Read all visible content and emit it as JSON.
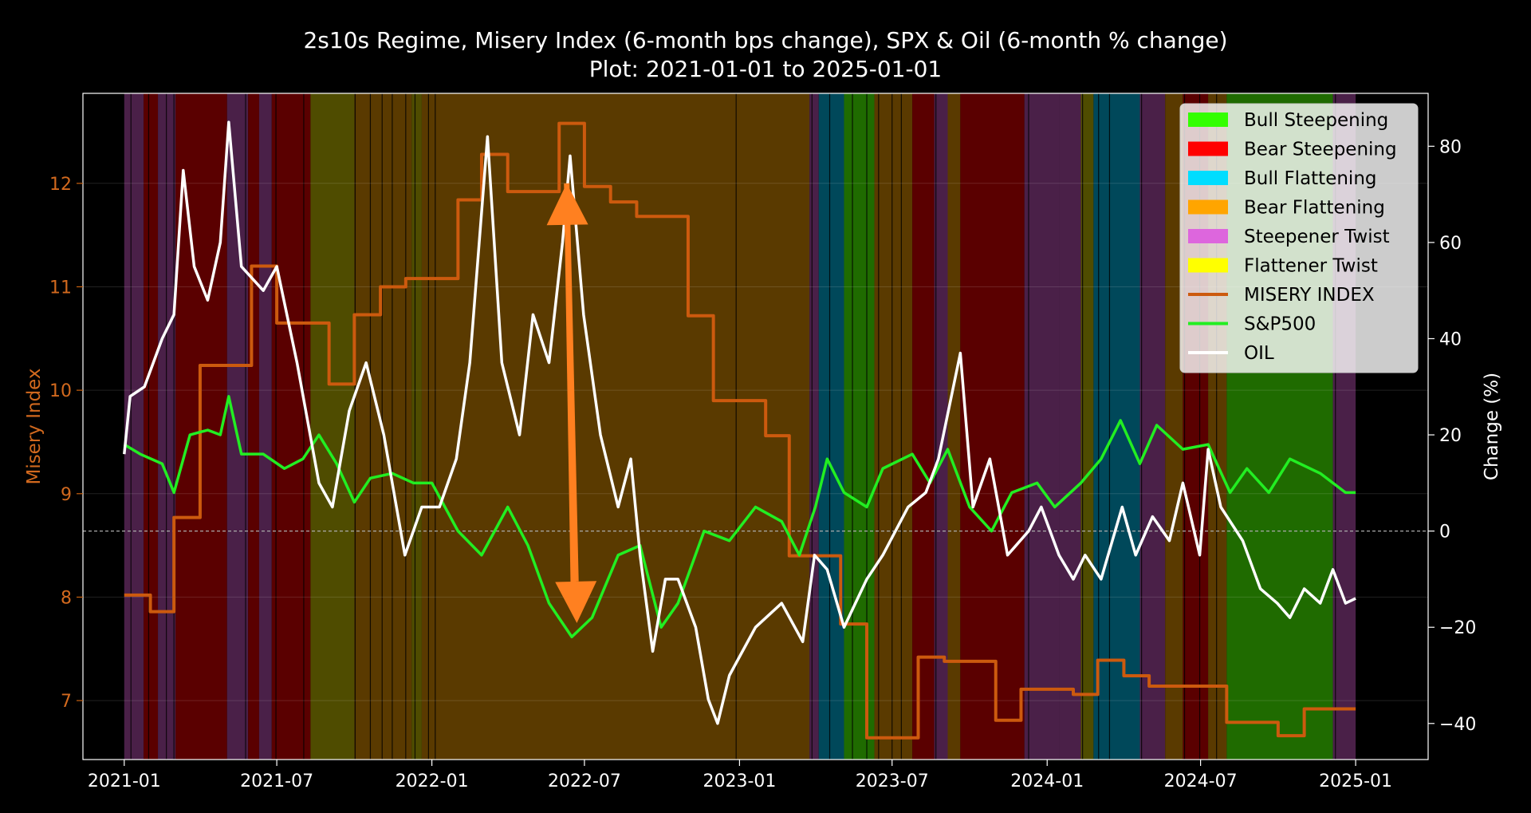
{
  "chart_data": {
    "type": "line",
    "title": "2s10s Regime, Misery Index (6-month bps change), SPX & Oil (6-month % change)",
    "subtitle": "Plot: 2021-01-01 to 2025-01-01",
    "xlabel": "",
    "ylabel_left": "Misery Index",
    "ylabel_right": "Change (%)",
    "x_ticks": [
      "2021-01",
      "2021-07",
      "2022-01",
      "2022-07",
      "2023-01",
      "2023-07",
      "2024-01",
      "2024-07",
      "2025-01"
    ],
    "y_left_ticks": [
      "7",
      "8",
      "9",
      "10",
      "11",
      "12"
    ],
    "y_right_ticks": [
      "−40",
      "−20",
      "0",
      "20",
      "40",
      "60",
      "80"
    ],
    "xlim": [
      "2020-11-13",
      "2025-03-28"
    ],
    "ylim_left": [
      6.43,
      12.87
    ],
    "ylim_right": [
      -47.5,
      91
    ],
    "grid": true,
    "zero_line": 0,
    "legend_position": "top-right",
    "legend": [
      {
        "label": "Bull Steepening",
        "kind": "patch",
        "color": "#33ff00"
      },
      {
        "label": "Bear Steepening",
        "kind": "patch",
        "color": "#ff0000"
      },
      {
        "label": "Bull Flattening",
        "kind": "patch",
        "color": "#00ddff"
      },
      {
        "label": "Bear Flattening",
        "kind": "patch",
        "color": "#ffa500"
      },
      {
        "label": "Steepener Twist",
        "kind": "patch",
        "color": "#dd66dd"
      },
      {
        "label": "Flattener Twist",
        "kind": "patch",
        "color": "#ffff00"
      },
      {
        "label": "MISERY INDEX",
        "kind": "line",
        "color": "#cc5a0e"
      },
      {
        "label": "S&P500",
        "kind": "line",
        "color": "#22ee22"
      },
      {
        "label": "OIL",
        "kind": "line",
        "color": "#ffffff"
      }
    ],
    "regime_colors": {
      "bull_steep": "#1f6b00",
      "bear_steep": "#5a0000",
      "bull_flat": "#00485a",
      "bear_flat": "#5a3a00",
      "steep_twist": "#4a2048",
      "flat_twist": "#4f4c00"
    },
    "regimes": [
      [
        "2021-01-01",
        "2021-01-24",
        "steep_twist"
      ],
      [
        "2021-01-24",
        "2021-02-10",
        "bear_steep"
      ],
      [
        "2021-02-10",
        "2021-03-03",
        "steep_twist"
      ],
      [
        "2021-03-03",
        "2021-05-03",
        "bear_steep"
      ],
      [
        "2021-05-03",
        "2021-05-28",
        "steep_twist"
      ],
      [
        "2021-05-28",
        "2021-06-10",
        "bear_steep"
      ],
      [
        "2021-06-10",
        "2021-06-25",
        "steep_twist"
      ],
      [
        "2021-06-25",
        "2021-08-10",
        "bear_steep"
      ],
      [
        "2021-08-10",
        "2021-10-01",
        "flat_twist"
      ],
      [
        "2021-10-01",
        "2021-12-08",
        "bear_flat"
      ],
      [
        "2021-12-08",
        "2021-12-20",
        "flat_twist"
      ],
      [
        "2021-12-20",
        "2023-03-25",
        "bear_flat"
      ],
      [
        "2023-03-25",
        "2023-04-05",
        "steep_twist"
      ],
      [
        "2023-04-05",
        "2023-05-05",
        "bull_flat"
      ],
      [
        "2023-05-05",
        "2023-06-10",
        "bull_steep"
      ],
      [
        "2023-06-10",
        "2023-07-25",
        "bear_flat"
      ],
      [
        "2023-07-25",
        "2023-08-20",
        "bear_steep"
      ],
      [
        "2023-08-20",
        "2023-09-05",
        "steep_twist"
      ],
      [
        "2023-09-05",
        "2023-09-20",
        "bear_flat"
      ],
      [
        "2023-09-20",
        "2023-12-05",
        "bear_steep"
      ],
      [
        "2023-12-05",
        "2024-01-15",
        "steep_twist"
      ],
      [
        "2024-01-15",
        "2024-02-10",
        "steep_twist"
      ],
      [
        "2024-02-10",
        "2024-02-25",
        "flat_twist"
      ],
      [
        "2024-02-25",
        "2024-04-20",
        "bull_flat"
      ],
      [
        "2024-04-20",
        "2024-05-20",
        "steep_twist"
      ],
      [
        "2024-05-20",
        "2024-06-10",
        "bear_flat"
      ],
      [
        "2024-06-10",
        "2024-07-10",
        "bear_steep"
      ],
      [
        "2024-07-10",
        "2024-08-01",
        "bear_flat"
      ],
      [
        "2024-08-01",
        "2024-12-05",
        "bull_steep"
      ],
      [
        "2024-12-05",
        "2025-01-01",
        "steep_twist"
      ]
    ],
    "series": [
      {
        "name": "MISERY INDEX",
        "axis": "left",
        "color": "#cc5a0e",
        "step": true,
        "points": [
          [
            "2021-01-01",
            8.02
          ],
          [
            "2021-02-01",
            7.86
          ],
          [
            "2021-03-01",
            8.77
          ],
          [
            "2021-04-01",
            10.24
          ],
          [
            "2021-06-01",
            11.2
          ],
          [
            "2021-07-01",
            10.65
          ],
          [
            "2021-09-01",
            10.06
          ],
          [
            "2021-10-01",
            10.73
          ],
          [
            "2021-11-01",
            11.0
          ],
          [
            "2021-12-01",
            11.08
          ],
          [
            "2022-02-01",
            11.84
          ],
          [
            "2022-03-01",
            12.28
          ],
          [
            "2022-04-01",
            11.92
          ],
          [
            "2022-06-01",
            12.58
          ],
          [
            "2022-07-01",
            11.97
          ],
          [
            "2022-08-01",
            11.82
          ],
          [
            "2022-09-01",
            11.68
          ],
          [
            "2022-11-01",
            10.72
          ],
          [
            "2022-12-01",
            9.9
          ],
          [
            "2023-02-01",
            9.56
          ],
          [
            "2023-03-01",
            8.4
          ],
          [
            "2023-05-01",
            7.74
          ],
          [
            "2023-06-01",
            6.64
          ],
          [
            "2023-08-01",
            7.42
          ],
          [
            "2023-09-01",
            7.38
          ],
          [
            "2023-11-01",
            6.81
          ],
          [
            "2023-12-01",
            7.11
          ],
          [
            "2024-02-01",
            7.06
          ],
          [
            "2024-03-01",
            7.39
          ],
          [
            "2024-04-01",
            7.24
          ],
          [
            "2024-05-01",
            7.14
          ],
          [
            "2024-08-01",
            6.79
          ],
          [
            "2024-10-01",
            6.66
          ],
          [
            "2024-11-01",
            6.92
          ],
          [
            "2025-01-01",
            6.92
          ]
        ]
      },
      {
        "name": "S&P500",
        "axis": "right",
        "color": "#22ee22",
        "step": false,
        "points": [
          [
            "2021-01-01",
            18
          ],
          [
            "2021-01-20",
            16
          ],
          [
            "2021-02-15",
            14
          ],
          [
            "2021-03-01",
            8
          ],
          [
            "2021-03-20",
            20
          ],
          [
            "2021-04-10",
            21
          ],
          [
            "2021-04-25",
            20
          ],
          [
            "2021-05-05",
            28
          ],
          [
            "2021-05-20",
            16
          ],
          [
            "2021-06-15",
            16
          ],
          [
            "2021-07-10",
            13
          ],
          [
            "2021-08-01",
            15
          ],
          [
            "2021-08-20",
            20
          ],
          [
            "2021-09-10",
            14
          ],
          [
            "2021-10-01",
            6
          ],
          [
            "2021-10-20",
            11
          ],
          [
            "2021-11-15",
            12
          ],
          [
            "2021-12-10",
            10
          ],
          [
            "2022-01-01",
            10
          ],
          [
            "2022-02-01",
            0
          ],
          [
            "2022-03-01",
            -5
          ],
          [
            "2022-04-01",
            5
          ],
          [
            "2022-04-25",
            -3
          ],
          [
            "2022-05-20",
            -15
          ],
          [
            "2022-06-16",
            -22
          ],
          [
            "2022-07-10",
            -18
          ],
          [
            "2022-08-10",
            -5
          ],
          [
            "2022-09-05",
            -3
          ],
          [
            "2022-09-30",
            -20
          ],
          [
            "2022-10-20",
            -15
          ],
          [
            "2022-11-20",
            0
          ],
          [
            "2022-12-20",
            -2
          ],
          [
            "2023-01-20",
            5
          ],
          [
            "2023-02-20",
            2
          ],
          [
            "2023-03-13",
            -5
          ],
          [
            "2023-04-01",
            5
          ],
          [
            "2023-04-15",
            15
          ],
          [
            "2023-05-05",
            8
          ],
          [
            "2023-06-01",
            5
          ],
          [
            "2023-06-20",
            13
          ],
          [
            "2023-07-25",
            16
          ],
          [
            "2023-08-15",
            10
          ],
          [
            "2023-09-05",
            17
          ],
          [
            "2023-10-01",
            5
          ],
          [
            "2023-10-27",
            0
          ],
          [
            "2023-11-20",
            8
          ],
          [
            "2023-12-20",
            10
          ],
          [
            "2024-01-10",
            5
          ],
          [
            "2024-02-10",
            10
          ],
          [
            "2024-03-05",
            15
          ],
          [
            "2024-03-28",
            23
          ],
          [
            "2024-04-20",
            14
          ],
          [
            "2024-05-10",
            22
          ],
          [
            "2024-06-10",
            17
          ],
          [
            "2024-07-10",
            18
          ],
          [
            "2024-08-05",
            8
          ],
          [
            "2024-08-25",
            13
          ],
          [
            "2024-09-20",
            8
          ],
          [
            "2024-10-15",
            15
          ],
          [
            "2024-11-20",
            12
          ],
          [
            "2024-12-20",
            8
          ],
          [
            "2025-01-01",
            8
          ]
        ]
      },
      {
        "name": "OIL",
        "axis": "right",
        "color": "#ffffff",
        "step": false,
        "points": [
          [
            "2021-01-01",
            16
          ],
          [
            "2021-01-08",
            28
          ],
          [
            "2021-01-25",
            30
          ],
          [
            "2021-02-15",
            40
          ],
          [
            "2021-03-01",
            45
          ],
          [
            "2021-03-12",
            75
          ],
          [
            "2021-03-25",
            55
          ],
          [
            "2021-04-10",
            48
          ],
          [
            "2021-04-25",
            60
          ],
          [
            "2021-05-05",
            85
          ],
          [
            "2021-05-20",
            55
          ],
          [
            "2021-06-15",
            50
          ],
          [
            "2021-07-01",
            55
          ],
          [
            "2021-07-25",
            35
          ],
          [
            "2021-08-20",
            10
          ],
          [
            "2021-09-05",
            5
          ],
          [
            "2021-09-25",
            25
          ],
          [
            "2021-10-15",
            35
          ],
          [
            "2021-11-05",
            20
          ],
          [
            "2021-11-30",
            -5
          ],
          [
            "2021-12-20",
            5
          ],
          [
            "2022-01-10",
            5
          ],
          [
            "2022-01-30",
            15
          ],
          [
            "2022-02-15",
            35
          ],
          [
            "2022-03-08",
            82
          ],
          [
            "2022-03-25",
            35
          ],
          [
            "2022-04-15",
            20
          ],
          [
            "2022-05-01",
            45
          ],
          [
            "2022-05-20",
            35
          ],
          [
            "2022-06-05",
            60
          ],
          [
            "2022-06-14",
            78
          ],
          [
            "2022-06-30",
            45
          ],
          [
            "2022-07-20",
            20
          ],
          [
            "2022-08-10",
            5
          ],
          [
            "2022-08-25",
            15
          ],
          [
            "2022-09-05",
            -5
          ],
          [
            "2022-09-20",
            -25
          ],
          [
            "2022-10-05",
            -10
          ],
          [
            "2022-10-20",
            -10
          ],
          [
            "2022-11-10",
            -20
          ],
          [
            "2022-11-25",
            -35
          ],
          [
            "2022-12-06",
            -40
          ],
          [
            "2022-12-20",
            -30
          ],
          [
            "2023-01-20",
            -20
          ],
          [
            "2023-02-20",
            -15
          ],
          [
            "2023-03-17",
            -23
          ],
          [
            "2023-03-31",
            -5
          ],
          [
            "2023-04-15",
            -8
          ],
          [
            "2023-05-05",
            -20
          ],
          [
            "2023-06-01",
            -10
          ],
          [
            "2023-06-20",
            -5
          ],
          [
            "2023-07-20",
            5
          ],
          [
            "2023-08-10",
            8
          ],
          [
            "2023-08-25",
            15
          ],
          [
            "2023-09-20",
            37
          ],
          [
            "2023-10-05",
            5
          ],
          [
            "2023-10-25",
            15
          ],
          [
            "2023-11-15",
            -5
          ],
          [
            "2023-12-10",
            0
          ],
          [
            "2023-12-25",
            5
          ],
          [
            "2024-01-15",
            -5
          ],
          [
            "2024-02-01",
            -10
          ],
          [
            "2024-02-15",
            -5
          ],
          [
            "2024-03-05",
            -10
          ],
          [
            "2024-03-30",
            5
          ],
          [
            "2024-04-15",
            -5
          ],
          [
            "2024-05-05",
            3
          ],
          [
            "2024-05-25",
            -2
          ],
          [
            "2024-06-10",
            10
          ],
          [
            "2024-06-30",
            -5
          ],
          [
            "2024-07-10",
            17
          ],
          [
            "2024-07-25",
            5
          ],
          [
            "2024-08-20",
            -2
          ],
          [
            "2024-09-10",
            -12
          ],
          [
            "2024-09-30",
            -15
          ],
          [
            "2024-10-15",
            -18
          ],
          [
            "2024-11-01",
            -12
          ],
          [
            "2024-11-20",
            -15
          ],
          [
            "2024-12-05",
            -8
          ],
          [
            "2024-12-20",
            -15
          ],
          [
            "2025-01-01",
            -14
          ]
        ]
      }
    ],
    "annotations": [
      {
        "type": "arrow",
        "axis": "left",
        "from": [
          "2022-06-18",
          8.05
        ],
        "to": [
          "2022-06-10",
          12.0
        ],
        "color": "#ff8020"
      },
      {
        "type": "arrow",
        "axis": "left",
        "from": [
          "2022-06-10",
          12.0
        ],
        "to": [
          "2022-06-22",
          7.75
        ],
        "color": "#ff8020"
      }
    ]
  }
}
